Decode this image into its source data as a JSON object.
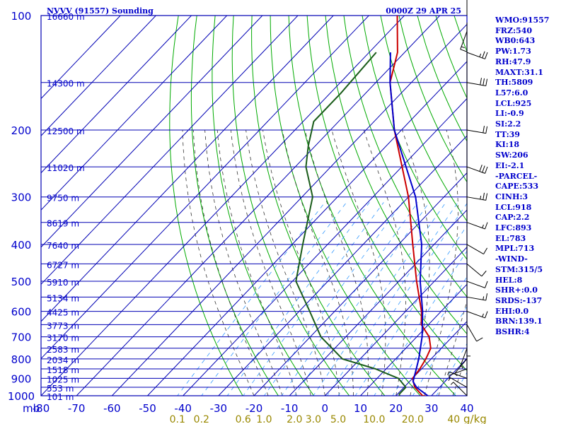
{
  "header": {
    "station": "NVVV (91557) Sounding",
    "time": "0000Z 29 APR 25"
  },
  "indices": [
    "WMO:91557",
    "FRZ:540",
    "WB0:643",
    "PW:1.73",
    "RH:47.9",
    "MAXT:31.1",
    "TH:5809",
    "L57:6.0",
    "LCL:925",
    "LI:-0.9",
    "SI:2.2",
    "TT:39",
    "KI:18",
    "SW:206",
    "EI:-2.1",
    "-PARCEL-",
    "CAPE:533",
    "CINH:3",
    "LCL:918",
    "CAP:2.2",
    "LFC:893",
    "EL:783",
    "MPL:713",
    "-WIND-",
    "STM:315/5",
    "HEL:8",
    "SHR+:0.0",
    "SRDS:-137",
    "EHI:0.0",
    "BRN:139.1",
    "BSHR:4"
  ],
  "colors": {
    "text": "#0000cc",
    "isobars": "#0000b4",
    "dry_adiabats": "#00aa00",
    "moist_adiabats": "#333333",
    "mixing_ratio": "#3399ff",
    "temperature": "#cc0000",
    "dewpoint": "#1a5c1a",
    "parcel": "#0000cc",
    "mixing_ratio_labels": "#998800",
    "winds": "#000000"
  },
  "chart_data": {
    "type": "line",
    "subtype": "skew-T log-P sounding",
    "pressure_unit_label": "mb",
    "pressure_ticks": [
      100,
      200,
      300,
      400,
      500,
      600,
      700,
      800,
      900,
      1000
    ],
    "pressure_range": [
      100,
      1000
    ],
    "temperature_ticks": [
      -80,
      -70,
      -60,
      -50,
      -40,
      -30,
      -20,
      -10,
      0,
      10,
      20,
      30,
      40
    ],
    "temperature_range": [
      -80,
      40
    ],
    "height_labels": [
      {
        "p": 100,
        "label": "16660 m"
      },
      {
        "p": 150,
        "label": "14300 m"
      },
      {
        "p": 200,
        "label": "12500 m"
      },
      {
        "p": 250,
        "label": "11020 m"
      },
      {
        "p": 300,
        "label": "9750 m"
      },
      {
        "p": 350,
        "label": "8619 m"
      },
      {
        "p": 400,
        "label": "7640 m"
      },
      {
        "p": 450,
        "label": "6727 m"
      },
      {
        "p": 500,
        "label": "5910 m"
      },
      {
        "p": 550,
        "label": "5134 m"
      },
      {
        "p": 600,
        "label": "4425 m"
      },
      {
        "p": 650,
        "label": "3773 m"
      },
      {
        "p": 700,
        "label": "3170 m"
      },
      {
        "p": 750,
        "label": "2583 m"
      },
      {
        "p": 800,
        "label": "2034 m"
      },
      {
        "p": 850,
        "label": "1518 m"
      },
      {
        "p": 900,
        "label": "1025 m"
      },
      {
        "p": 950,
        "label": "553 m"
      },
      {
        "p": 1000,
        "label": "101 m"
      }
    ],
    "mixing_ratio_labels": [
      {
        "w": 0.1,
        "label": "0.1"
      },
      {
        "w": 0.2,
        "label": "0.2"
      },
      {
        "w": 0.6,
        "label": "0.6"
      },
      {
        "w": 1.0,
        "label": "1.0"
      },
      {
        "w": 2.0,
        "label": "2.0"
      },
      {
        "w": 3.0,
        "label": "3.0"
      },
      {
        "w": 5.0,
        "label": "5.0"
      },
      {
        "w": 10.0,
        "label": "10.0"
      },
      {
        "w": 20.0,
        "label": "20.0"
      },
      {
        "w": 40.0,
        "label": "40"
      }
    ],
    "mixing_ratio_unit": "g/kg",
    "temperature": [
      {
        "p": 1005,
        "t": 29.5
      },
      {
        "p": 1000,
        "t": 27.5
      },
      {
        "p": 950,
        "t": 23.0
      },
      {
        "p": 900,
        "t": 20.0
      },
      {
        "p": 850,
        "t": 19.5
      },
      {
        "p": 800,
        "t": 18.5
      },
      {
        "p": 750,
        "t": 17.0
      },
      {
        "p": 700,
        "t": 13.5
      },
      {
        "p": 650,
        "t": 8.0
      },
      {
        "p": 600,
        "t": 4.5
      },
      {
        "p": 500,
        "t": -5.0
      },
      {
        "p": 400,
        "t": -16.0
      },
      {
        "p": 300,
        "t": -30.0
      },
      {
        "p": 200,
        "t": -52.0
      },
      {
        "p": 150,
        "t": -66.0
      },
      {
        "p": 125,
        "t": -72.0
      },
      {
        "p": 100,
        "t": -82.0
      }
    ],
    "dewpoint": [
      {
        "p": 1000,
        "t": 21.0
      },
      {
        "p": 990,
        "t": 20.5
      },
      {
        "p": 950,
        "t": 20.5
      },
      {
        "p": 900,
        "t": 16.0
      },
      {
        "p": 850,
        "t": 7.0
      },
      {
        "p": 800,
        "t": -5.0
      },
      {
        "p": 700,
        "t": -17.0
      },
      {
        "p": 600,
        "t": -27.0
      },
      {
        "p": 500,
        "t": -39.0
      },
      {
        "p": 400,
        "t": -47.0
      },
      {
        "p": 300,
        "t": -57.0
      },
      {
        "p": 250,
        "t": -67.0
      },
      {
        "p": 220,
        "t": -72.0
      },
      {
        "p": 190,
        "t": -77.0
      },
      {
        "p": 160,
        "t": -77.0
      },
      {
        "p": 125,
        "t": -78.0
      }
    ],
    "parcel": [
      {
        "p": 1005,
        "t": 29.5
      },
      {
        "p": 950,
        "t": 23.5
      },
      {
        "p": 918,
        "t": 21.0
      },
      {
        "p": 850,
        "t": 18.5
      },
      {
        "p": 800,
        "t": 16.5
      },
      {
        "p": 700,
        "t": 11.5
      },
      {
        "p": 600,
        "t": 4.8
      },
      {
        "p": 500,
        "t": -4.0
      },
      {
        "p": 400,
        "t": -13.5
      },
      {
        "p": 300,
        "t": -28.0
      },
      {
        "p": 200,
        "t": -52.0
      },
      {
        "p": 150,
        "t": -66.0
      },
      {
        "p": 125,
        "t": -74.0
      }
    ],
    "winds": [
      {
        "p": 1000,
        "dir": 315,
        "spd": 5
      },
      {
        "p": 950,
        "dir": 300,
        "spd": 5
      },
      {
        "p": 900,
        "dir": 290,
        "spd": 5
      },
      {
        "p": 850,
        "dir": 250,
        "spd": 5
      },
      {
        "p": 800,
        "dir": 220,
        "spd": 5
      },
      {
        "p": 750,
        "dir": 200,
        "spd": 5
      },
      {
        "p": 700,
        "dir": 180,
        "spd": 5
      },
      {
        "p": 650,
        "dir": 150,
        "spd": 10
      },
      {
        "p": 600,
        "dir": 110,
        "spd": 15
      },
      {
        "p": 550,
        "dir": 100,
        "spd": 15
      },
      {
        "p": 500,
        "dir": 110,
        "spd": 10
      },
      {
        "p": 450,
        "dir": 130,
        "spd": 10
      },
      {
        "p": 400,
        "dir": 120,
        "spd": 10
      },
      {
        "p": 350,
        "dir": 110,
        "spd": 15
      },
      {
        "p": 300,
        "dir": 100,
        "spd": 25
      },
      {
        "p": 250,
        "dir": 110,
        "spd": 30
      },
      {
        "p": 200,
        "dir": 100,
        "spd": 20
      },
      {
        "p": 150,
        "dir": 100,
        "spd": 30
      },
      {
        "p": 125,
        "dir": 110,
        "spd": 25
      },
      {
        "p": 110,
        "dir": 200,
        "spd": 15
      },
      {
        "p": 100,
        "dir": 0,
        "spd": 5
      }
    ],
    "title": "NVVV (91557) Sounding",
    "grid": true,
    "legend": "none"
  }
}
